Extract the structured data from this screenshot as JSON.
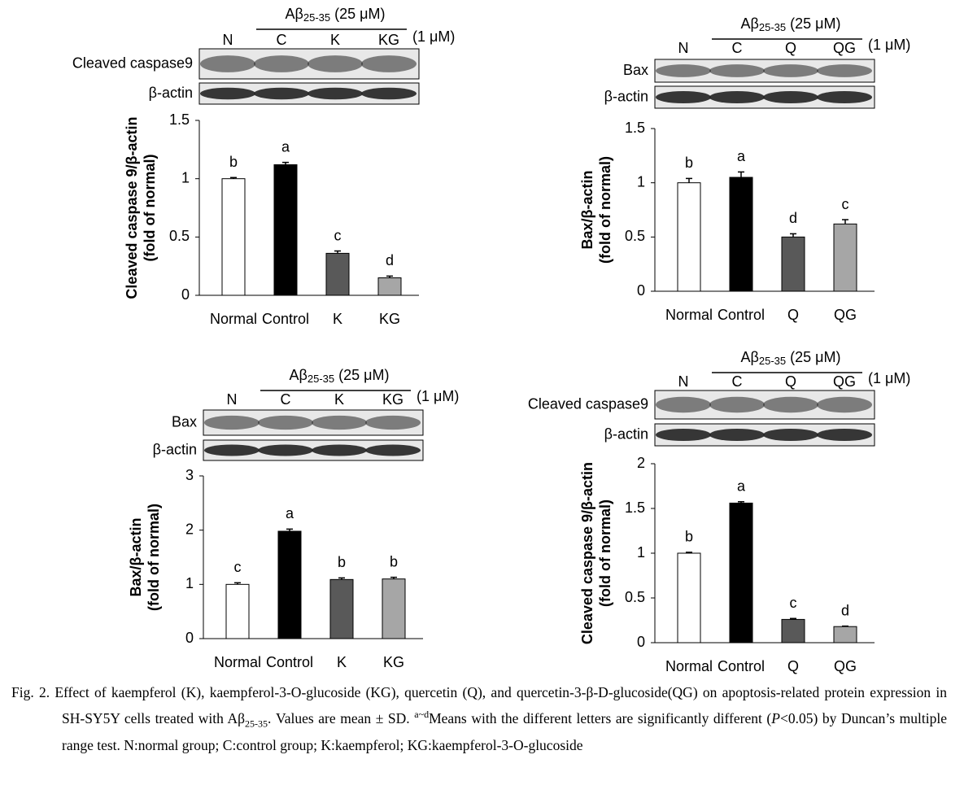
{
  "chart_data": [
    {
      "type": "bar",
      "treatment": [
        "Aβ",
        "25-35",
        "(25 μM)"
      ],
      "dose": "(1 μM)",
      "lanes": [
        "N",
        "C",
        "K",
        "KG"
      ],
      "blot_rows": [
        "Cleaved caspase9",
        "β-actin"
      ],
      "ylabel": [
        "Cleaved caspase 9/β-actin",
        "(fold of normal)"
      ],
      "categories": [
        "Normal",
        "Control",
        "K",
        "KG"
      ],
      "values": [
        1.0,
        1.12,
        0.36,
        0.15
      ],
      "errors": [
        0.01,
        0.02,
        0.02,
        0.015
      ],
      "letters": [
        "b",
        "a",
        "c",
        "d"
      ],
      "colors": [
        "#ffffff",
        "#000000",
        "#595959",
        "#a6a6a6"
      ],
      "ylim": [
        0,
        1.5
      ],
      "yticks": [
        0,
        0.5,
        1,
        1.5
      ]
    },
    {
      "type": "bar",
      "treatment": [
        "Aβ",
        "25-35",
        "(25 μM)"
      ],
      "dose": "(1 μM)",
      "lanes": [
        "N",
        "C",
        "Q",
        "QG"
      ],
      "blot_rows": [
        "Bax",
        "β-actin"
      ],
      "ylabel": [
        "Bax/β-actin",
        "(fold of normal)"
      ],
      "categories": [
        "Normal",
        "Control",
        "Q",
        "QG"
      ],
      "values": [
        1.0,
        1.05,
        0.5,
        0.62
      ],
      "errors": [
        0.04,
        0.05,
        0.03,
        0.04
      ],
      "letters": [
        "b",
        "a",
        "d",
        "c"
      ],
      "colors": [
        "#ffffff",
        "#000000",
        "#595959",
        "#a6a6a6"
      ],
      "ylim": [
        0,
        1.5
      ],
      "yticks": [
        0,
        0.5,
        1,
        1.5
      ]
    },
    {
      "type": "bar",
      "treatment": [
        "Aβ",
        "25-35",
        "(25 μM)"
      ],
      "dose": "(1 μM)",
      "lanes": [
        "N",
        "C",
        "K",
        "KG"
      ],
      "blot_rows": [
        "Bax",
        "β-actin"
      ],
      "ylabel": [
        "Bax/β-actin",
        "(fold of normal)"
      ],
      "categories": [
        "Normal",
        "Control",
        "K",
        "KG"
      ],
      "values": [
        1.0,
        1.98,
        1.09,
        1.1
      ],
      "errors": [
        0.03,
        0.04,
        0.03,
        0.03
      ],
      "letters": [
        "c",
        "a",
        "b",
        "b"
      ],
      "colors": [
        "#ffffff",
        "#000000",
        "#595959",
        "#a6a6a6"
      ],
      "ylim": [
        0,
        3
      ],
      "yticks": [
        0,
        1,
        2,
        3
      ]
    },
    {
      "type": "bar",
      "treatment": [
        "Aβ",
        "25-35",
        "(25 μM)"
      ],
      "dose": "(1 μM)",
      "lanes": [
        "N",
        "C",
        "Q",
        "QG"
      ],
      "blot_rows": [
        "Cleaved caspase9",
        "β-actin"
      ],
      "ylabel": [
        "Cleaved caspase 9/β-actin",
        "(fold of normal)"
      ],
      "categories": [
        "Normal",
        "Control",
        "Q",
        "QG"
      ],
      "values": [
        1.0,
        1.56,
        0.26,
        0.18
      ],
      "errors": [
        0.01,
        0.015,
        0.01,
        0.005
      ],
      "letters": [
        "b",
        "a",
        "c",
        "d"
      ],
      "colors": [
        "#ffffff",
        "#000000",
        "#595959",
        "#a6a6a6"
      ],
      "ylim": [
        0,
        2
      ],
      "yticks": [
        0,
        0.5,
        1,
        1.5,
        2
      ]
    }
  ],
  "caption": [
    {
      "text": "Fig. 2. Effect of kaempferol (K), kaempferol-3-O-glucoside (KG), quercetin (Q), and quercetin-3-β-D-glucoside(QG) on apoptosis-related protein expression in SH-SY5Y cells treated with Aβ",
      "style": "normal"
    },
    {
      "text": "25-35",
      "style": "sub"
    },
    {
      "text": ". Values are mean ± SD. ",
      "style": "normal"
    },
    {
      "text": "a~d",
      "style": "sup"
    },
    {
      "text": "Means with the different letters are significantly different (",
      "style": "normal"
    },
    {
      "text": "P",
      "style": "italic"
    },
    {
      "text": "<0.05) by Duncan’s multiple range test. N:normal group; C:control group; K:kaempferol; KG:kaempferol-3-O-glucoside",
      "style": "normal"
    }
  ]
}
